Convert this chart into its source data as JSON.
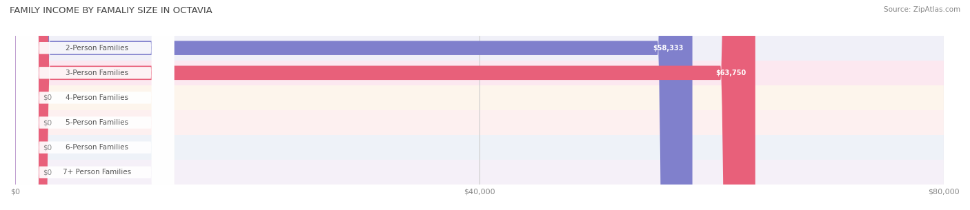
{
  "title": "FAMILY INCOME BY FAMALIY SIZE IN OCTAVIA",
  "source": "Source: ZipAtlas.com",
  "categories": [
    "2-Person Families",
    "3-Person Families",
    "4-Person Families",
    "5-Person Families",
    "6-Person Families",
    "7+ Person Families"
  ],
  "values": [
    58333,
    63750,
    0,
    0,
    0,
    0
  ],
  "bar_colors": [
    "#8080cc",
    "#e8607a",
    "#f5c98a",
    "#f0a0a0",
    "#a0b8e0",
    "#c0a0d0"
  ],
  "label_bg_colors": [
    "#9898d8",
    "#f07090",
    "#f5c98a",
    "#f0a0a0",
    "#a0b8e0",
    "#c0a0d0"
  ],
  "row_bg_colors": [
    "#f0f0f8",
    "#fce8f0",
    "#fdf5ec",
    "#fdf0f0",
    "#eef2f8",
    "#f5f0f8"
  ],
  "xlim": [
    0,
    80000
  ],
  "xtick_values": [
    0,
    40000,
    80000
  ],
  "xtick_labels": [
    "$0",
    "$40,000",
    "$80,000"
  ],
  "value_label_color": "#ffffff",
  "category_label_color": "#555555",
  "title_color": "#444444",
  "source_color": "#888888",
  "background_color": "#ffffff",
  "bar_height": 0.55,
  "figsize": [
    14.06,
    3.05
  ],
  "dpi": 100
}
